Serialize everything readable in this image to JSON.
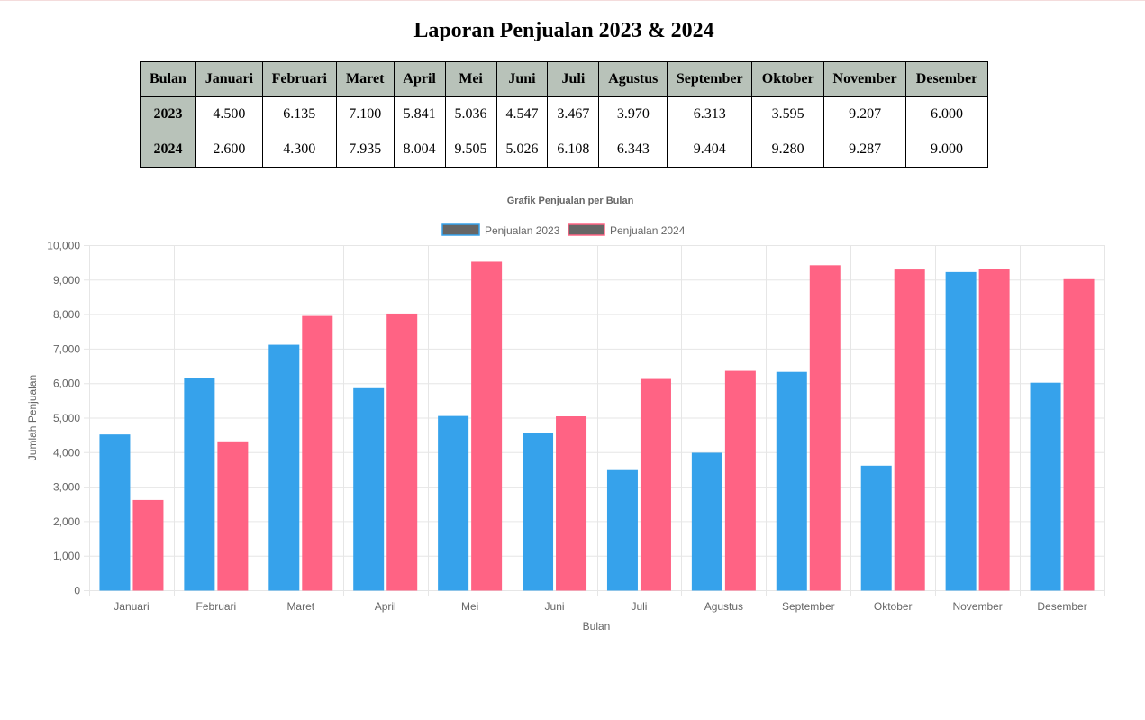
{
  "page": {
    "title": "Laporan Penjualan 2023 & 2024"
  },
  "table": {
    "header": [
      "Bulan",
      "Januari",
      "Februari",
      "Maret",
      "April",
      "Mei",
      "Juni",
      "Juli",
      "Agustus",
      "September",
      "Oktober",
      "November",
      "Desember"
    ],
    "rows": [
      {
        "label": "2023",
        "cells": [
          "4.500",
          "6.135",
          "7.100",
          "5.841",
          "5.036",
          "4.547",
          "3.467",
          "3.970",
          "6.313",
          "3.595",
          "9.207",
          "6.000"
        ]
      },
      {
        "label": "2024",
        "cells": [
          "2.600",
          "4.300",
          "7.935",
          "8.004",
          "9.505",
          "5.026",
          "6.108",
          "6.343",
          "9.404",
          "9.280",
          "9.287",
          "9.000"
        ]
      }
    ]
  },
  "chart_data": {
    "type": "bar",
    "title": "Grafik Penjualan per Bulan",
    "xlabel": "Bulan",
    "ylabel": "Jumlah Penjualan",
    "categories": [
      "Januari",
      "Februari",
      "Maret",
      "April",
      "Mei",
      "Juni",
      "Juli",
      "Agustus",
      "September",
      "Oktober",
      "November",
      "Desember"
    ],
    "ylim": [
      0,
      10000
    ],
    "yticks": [
      0,
      1000,
      2000,
      3000,
      4000,
      5000,
      6000,
      7000,
      8000,
      9000,
      10000
    ],
    "ytick_labels": [
      "0",
      "1,000",
      "2,000",
      "3,000",
      "4,000",
      "5,000",
      "6,000",
      "7,000",
      "8,000",
      "9,000",
      "10,000"
    ],
    "grid": true,
    "legend_position": "top-center",
    "series": [
      {
        "name": "Penjualan 2023",
        "color": "#36a2eb",
        "values": [
          4500,
          6135,
          7100,
          5841,
          5036,
          4547,
          3467,
          3970,
          6313,
          3595,
          9207,
          6000
        ]
      },
      {
        "name": "Penjualan 2024",
        "color": "#ff6384",
        "values": [
          2600,
          4300,
          7935,
          8004,
          9505,
          5026,
          6108,
          6343,
          9404,
          9280,
          9287,
          9000
        ]
      }
    ],
    "legend_swatch_color": "#666666"
  }
}
